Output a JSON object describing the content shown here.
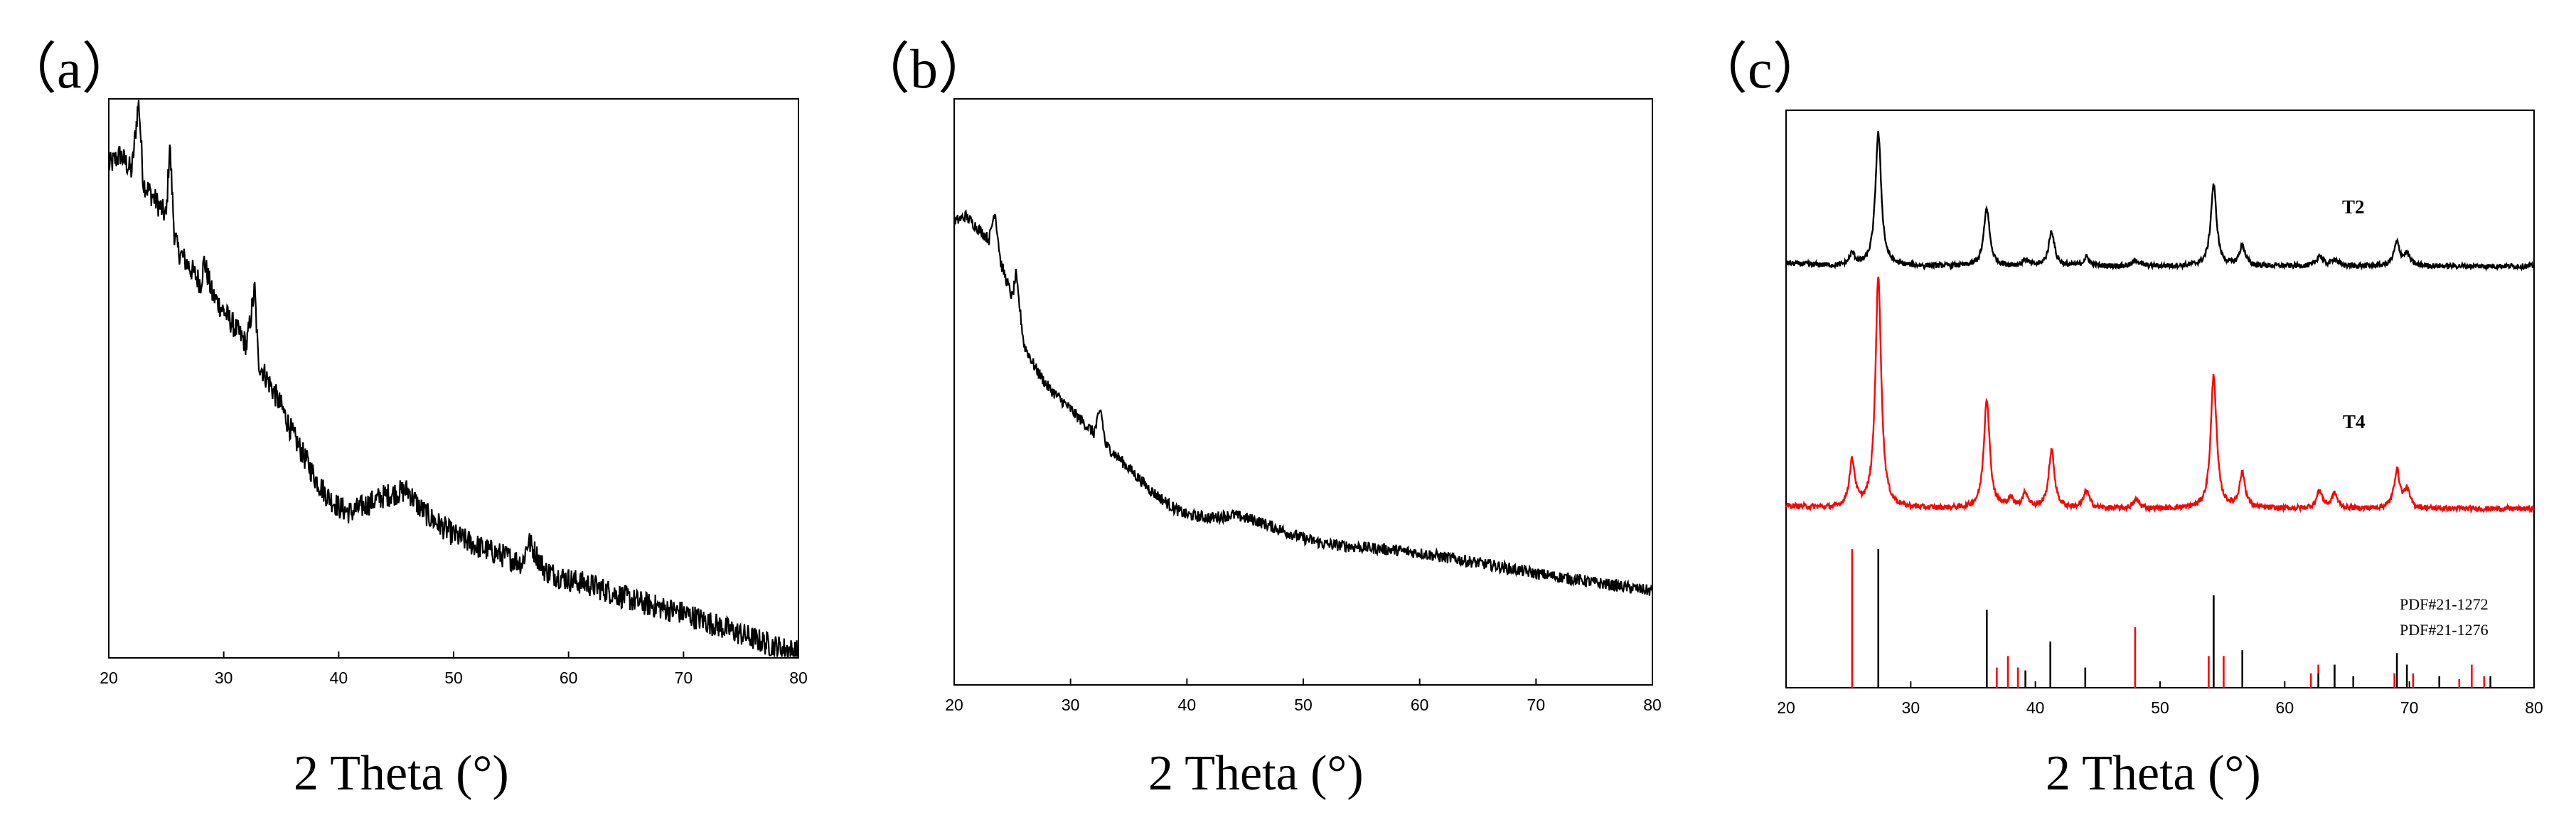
{
  "chart_data": [
    {
      "type": "line",
      "panel_label": "（a）",
      "xlabel": "2 Theta (°)",
      "ylabel": "",
      "xlim": [
        20,
        80
      ],
      "ylim": [
        0,
        100
      ],
      "xticks": [
        "20",
        "30",
        "40",
        "50",
        "60",
        "70",
        "80"
      ],
      "grid": false,
      "series": [
        {
          "color": "#000000",
          "x": [
            20,
            21,
            22,
            22.6,
            23,
            24,
            25,
            25.3,
            25.7,
            26,
            27,
            28,
            28.3,
            29,
            30,
            31,
            32,
            32.7,
            33,
            34,
            35,
            36,
            37,
            38,
            39,
            40,
            41,
            42,
            43,
            44,
            45,
            46,
            47,
            48,
            49,
            50,
            52,
            54,
            56,
            56.5,
            58,
            60,
            62,
            64,
            66,
            68,
            70,
            72,
            74,
            76,
            78,
            80
          ],
          "y": [
            88,
            90,
            87,
            100,
            85,
            82,
            79,
            92,
            76,
            73,
            70,
            67,
            71,
            65,
            62,
            59,
            56,
            66,
            53,
            49,
            45,
            40,
            36,
            32,
            29,
            27,
            26,
            27,
            28,
            29,
            29.5,
            30,
            27,
            25,
            23.5,
            22,
            20,
            18.5,
            17,
            21,
            15.5,
            14,
            13,
            11.5,
            10,
            9,
            8,
            6.5,
            5,
            3.5,
            2,
            1
          ]
        }
      ]
    },
    {
      "type": "line",
      "panel_label": "（b）",
      "xlabel": "2 Theta (°)",
      "ylabel": "",
      "xlim": [
        20,
        80
      ],
      "ylim": [
        0,
        100
      ],
      "xticks": [
        "20",
        "30",
        "40",
        "50",
        "60",
        "70",
        "80"
      ],
      "grid": false,
      "series": [
        {
          "color": "#000000",
          "x": [
            20,
            21,
            22,
            23,
            23.5,
            24,
            25,
            25.3,
            26,
            27,
            28,
            29,
            30,
            31,
            32,
            32.6,
            33,
            34,
            35,
            36,
            37,
            38,
            39,
            40,
            42,
            44,
            46,
            48,
            50,
            52,
            55,
            58,
            60,
            63,
            66,
            70,
            75,
            80
          ],
          "y": [
            79,
            80,
            78,
            76,
            81,
            72,
            66,
            70,
            58,
            54,
            51,
            49,
            47,
            45,
            43,
            47,
            41,
            39,
            37,
            35,
            33,
            31.5,
            30,
            29,
            28.5,
            29,
            28,
            26.5,
            25,
            24,
            23.5,
            23,
            22.5,
            21.5,
            20.5,
            19,
            17.5,
            16
          ]
        }
      ]
    },
    {
      "type": "line",
      "panel_label": "（c）",
      "xlabel": "2 Theta (°)",
      "ylabel": "",
      "xlim": [
        20,
        80
      ],
      "ylim": [
        0,
        100
      ],
      "xticks": [
        "20",
        "30",
        "40",
        "50",
        "60",
        "70",
        "80"
      ],
      "grid": false,
      "series": [
        {
          "name": "T2",
          "color": "#000000",
          "baseline": 73,
          "peaks": [
            [
              25.3,
              2
            ],
            [
              27.4,
              23
            ],
            [
              36.1,
              10
            ],
            [
              39.2,
              1
            ],
            [
              41.3,
              6
            ],
            [
              44.1,
              1.5
            ],
            [
              48.1,
              1
            ],
            [
              54.3,
              14
            ],
            [
              56.6,
              3.5
            ],
            [
              62.8,
              1.8
            ],
            [
              64.0,
              1.2
            ],
            [
              69.0,
              4
            ],
            [
              69.8,
              2
            ]
          ]
        },
        {
          "name": "T4",
          "color": "#ff0000",
          "baseline": 31,
          "peaks": [
            [
              25.3,
              8
            ],
            [
              27.4,
              40
            ],
            [
              36.1,
              19
            ],
            [
              38.0,
              1.5
            ],
            [
              39.2,
              2.5
            ],
            [
              41.3,
              10
            ],
            [
              44.1,
              3
            ],
            [
              48.1,
              1.5
            ],
            [
              54.3,
              23
            ],
            [
              56.6,
              6
            ],
            [
              62.8,
              3
            ],
            [
              64.0,
              2.5
            ],
            [
              69.0,
              6.5
            ],
            [
              69.8,
              3
            ]
          ]
        },
        {
          "name": "PDF#21-1272",
          "type": "stick",
          "color": "#ff0000",
          "x": [
            25.3,
            36.9,
            37.8,
            38.6,
            48.0,
            53.9,
            55.1,
            62.1,
            62.7,
            68.8,
            70.3,
            74.0,
            75.0,
            76.0
          ],
          "y": [
            24,
            3.5,
            5.5,
            3.5,
            10.5,
            5.5,
            5.5,
            2.5,
            4,
            2.5,
            2.5,
            1.5,
            4,
            2
          ]
        },
        {
          "name": "PDF#21-1276",
          "type": "stick",
          "color": "#000000",
          "x": [
            27.4,
            36.1,
            39.2,
            41.2,
            44.0,
            54.3,
            56.6,
            62.7,
            64.0,
            65.5,
            69.0,
            69.8,
            72.4,
            76.5
          ],
          "y": [
            24,
            13.5,
            3,
            8,
            3.5,
            16,
            6.5,
            2.5,
            4,
            2,
            6,
            4,
            2,
            2
          ]
        }
      ],
      "annotations": [
        "T2",
        "T4",
        "PDF#21-1272",
        "PDF#21-1276"
      ]
    }
  ]
}
